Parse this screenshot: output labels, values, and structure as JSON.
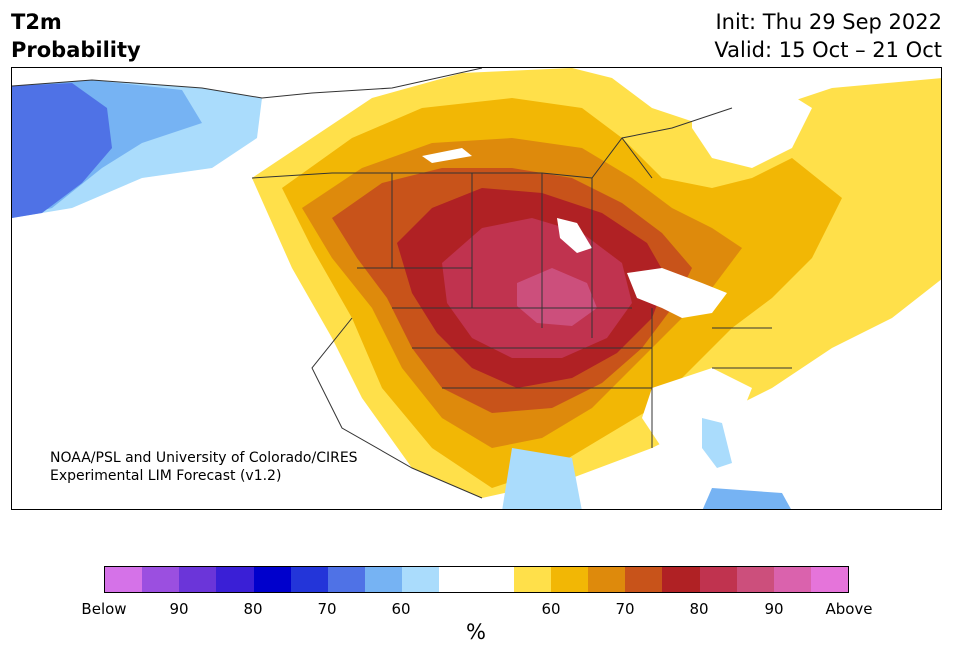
{
  "header": {
    "title_line1": "T2m",
    "title_line2": "Probability",
    "init": "Init: Thu 29 Sep 2022",
    "valid": "Valid: 15 Oct – 21 Oct"
  },
  "credit": {
    "line1": "NOAA/PSL and University of Colorado/CIRES",
    "line2": "Experimental LIM Forecast (v1.2)"
  },
  "colorbar": {
    "colors": [
      "#d572e8",
      "#9b4fe0",
      "#6b35d9",
      "#3a1fd6",
      "#0000cc",
      "#2335d9",
      "#4f72e6",
      "#76b3f3",
      "#aadcfc",
      "#ffffff",
      "#ffffff",
      "#ffe04a",
      "#f2b705",
      "#de8a0c",
      "#c8531a",
      "#b02124",
      "#c0334f",
      "#cc4f7c",
      "#da62ad",
      "#e574da"
    ],
    "tick_labels": [
      "Below",
      "90",
      "80",
      "70",
      "60",
      "60",
      "70",
      "80",
      "90",
      "Above"
    ],
    "unit": "%"
  },
  "map_colors": {
    "land": "#ffffff",
    "above_50": "#ffe04a",
    "above_60": "#f2b705",
    "above_65": "#de8a0c",
    "above_70": "#c8531a",
    "above_75": "#b02124",
    "above_80": "#c0334f",
    "above_85": "#cc4f7c",
    "below_50": "#aadcfc",
    "below_55": "#76b3f3",
    "below_60": "#4f72e6",
    "border": "#333333"
  }
}
